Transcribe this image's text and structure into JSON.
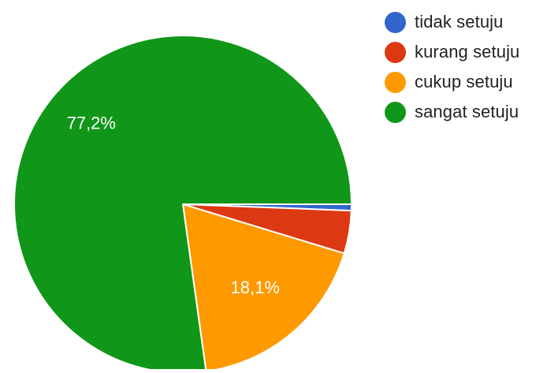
{
  "chart_data": {
    "type": "pie",
    "categories": [
      "tidak setuju",
      "kurang setuju",
      "cukup setuju",
      "sangat setuju"
    ],
    "values": [
      0.6,
      4.1,
      18.1,
      77.2
    ],
    "data_labels": [
      "",
      "",
      "18,1%",
      "77,2%"
    ],
    "colors": [
      "#3366cc",
      "#dc3912",
      "#ff9900",
      "#109618"
    ],
    "legend_position": "right"
  }
}
